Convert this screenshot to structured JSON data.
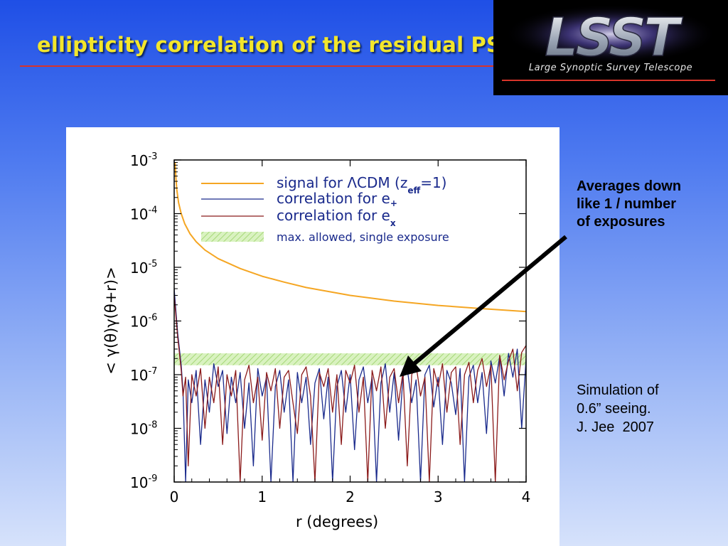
{
  "slide": {
    "title": "ellipticity correlation of the residual PSF: single exposure"
  },
  "logo": {
    "letters": "LSST",
    "subtitle": "Large Synoptic Survey Telescope"
  },
  "notes": {
    "averages": [
      "Averages down",
      "like 1 / number",
      "of exposures"
    ],
    "simulation": [
      "Simulation of",
      "0.6” seeing.",
      "J. Jee  2007"
    ]
  },
  "chart_data": {
    "type": "line",
    "xlabel": "r (degrees)",
    "ylabel": "< γ(θ)γ(θ+r)>",
    "xlim": [
      0,
      4
    ],
    "ylim": [
      1e-09,
      0.001
    ],
    "yscale": "log",
    "xticks": [
      "0",
      "1",
      "2",
      "3",
      "4"
    ],
    "yticks": [
      {
        "base": "10",
        "exp": "-3"
      },
      {
        "base": "10",
        "exp": "-4"
      },
      {
        "base": "10",
        "exp": "-5"
      },
      {
        "base": "10",
        "exp": "-6"
      },
      {
        "base": "10",
        "exp": "-7"
      },
      {
        "base": "10",
        "exp": "-8"
      },
      {
        "base": "10",
        "exp": "-9"
      }
    ],
    "legend_position": "top-right",
    "series": [
      {
        "name": "signal for ΛCDM (zeff=1)",
        "legend_main": "signal for ΛCDM (z",
        "legend_sub": "eff",
        "legend_tail": "=1)",
        "color": "#f5a623",
        "x": [
          0.01,
          0.02,
          0.03,
          0.05,
          0.08,
          0.12,
          0.18,
          0.25,
          0.35,
          0.5,
          0.75,
          1.0,
          1.25,
          1.5,
          2.0,
          2.5,
          3.0,
          3.5,
          4.0
        ],
        "y": [
          0.0009,
          0.00045,
          0.00028,
          0.00016,
          0.0001,
          6.5e-05,
          4.2e-05,
          3e-05,
          2.1e-05,
          1.45e-05,
          9.5e-06,
          6.8e-06,
          5.3e-06,
          4.2e-06,
          3e-06,
          2.35e-06,
          1.95e-06,
          1.7e-06,
          1.5e-06
        ]
      },
      {
        "name": "correlation for e+",
        "legend_main": "correlation for e",
        "legend_sub": "+",
        "color": "#1a2a8c",
        "x": [
          0.0,
          0.02,
          0.04,
          0.06,
          0.08,
          0.1,
          0.13,
          0.16,
          0.2,
          0.25,
          0.3,
          0.35,
          0.4,
          0.45,
          0.5,
          0.55,
          0.6,
          0.65,
          0.7,
          0.75,
          0.8,
          0.85,
          0.9,
          0.95,
          1.0,
          1.05,
          1.1,
          1.15,
          1.2,
          1.25,
          1.3,
          1.35,
          1.4,
          1.45,
          1.5,
          1.55,
          1.6,
          1.65,
          1.7,
          1.75,
          1.8,
          1.85,
          1.9,
          1.95,
          2.0,
          2.05,
          2.1,
          2.15,
          2.2,
          2.25,
          2.3,
          2.35,
          2.4,
          2.45,
          2.5,
          2.55,
          2.6,
          2.65,
          2.7,
          2.75,
          2.8,
          2.85,
          2.9,
          2.95,
          3.0,
          3.05,
          3.1,
          3.15,
          3.2,
          3.25,
          3.3,
          3.35,
          3.4,
          3.45,
          3.5,
          3.55,
          3.6,
          3.65,
          3.7,
          3.75,
          3.8,
          3.85,
          3.9,
          3.95,
          4.0
        ],
        "y": [
          4e-06,
          1.5e-06,
          6e-07,
          3e-07,
          1.5e-07,
          5e-08,
          1e-09,
          8e-08,
          3e-08,
          1.2e-07,
          5e-09,
          8e-08,
          2e-08,
          1.6e-07,
          6e-08,
          1.2e-07,
          8e-09,
          9e-08,
          3e-08,
          1.1e-07,
          1e-08,
          7e-08,
          2e-09,
          1.3e-07,
          4e-08,
          9e-08,
          1e-09,
          6e-08,
          1.2e-07,
          2e-08,
          8e-08,
          1e-09,
          1.1e-07,
          3e-08,
          9e-08,
          5e-09,
          7e-08,
          1.3e-07,
          1.5e-08,
          9e-08,
          1e-09,
          6e-08,
          1.2e-07,
          2e-08,
          1e-07,
          4e-09,
          8e-08,
          1.4e-07,
          3e-08,
          9e-08,
          1e-09,
          7e-08,
          1.6e-07,
          2e-08,
          1.1e-07,
          6e-09,
          9e-08,
          1.3e-07,
          3e-08,
          8e-08,
          1e-09,
          1e-07,
          1.5e-07,
          2.5e-08,
          9e-08,
          5e-09,
          1.2e-07,
          7e-08,
          1.8e-08,
          1.3e-07,
          1e-09,
          9e-08,
          1.5e-07,
          3e-08,
          1.1e-07,
          8e-09,
          1.8e-07,
          7e-08,
          2.2e-07,
          4e-08,
          2.5e-07,
          9e-08,
          3e-07,
          1e-08,
          2e-07
        ]
      },
      {
        "name": "correlation for ex",
        "legend_main": "correlation for e",
        "legend_sub": "x",
        "color": "#8b1a1a",
        "x": [
          0.0,
          0.02,
          0.04,
          0.06,
          0.08,
          0.1,
          0.13,
          0.16,
          0.2,
          0.25,
          0.3,
          0.35,
          0.4,
          0.45,
          0.5,
          0.55,
          0.6,
          0.65,
          0.7,
          0.75,
          0.8,
          0.85,
          0.9,
          0.95,
          1.0,
          1.05,
          1.1,
          1.15,
          1.2,
          1.25,
          1.3,
          1.35,
          1.4,
          1.45,
          1.5,
          1.55,
          1.6,
          1.65,
          1.7,
          1.75,
          1.8,
          1.85,
          1.9,
          1.95,
          2.0,
          2.05,
          2.1,
          2.15,
          2.2,
          2.25,
          2.3,
          2.35,
          2.4,
          2.45,
          2.5,
          2.55,
          2.6,
          2.65,
          2.7,
          2.75,
          2.8,
          2.85,
          2.9,
          2.95,
          3.0,
          3.05,
          3.1,
          3.15,
          3.2,
          3.25,
          3.3,
          3.35,
          3.4,
          3.45,
          3.5,
          3.55,
          3.6,
          3.65,
          3.7,
          3.75,
          3.8,
          3.85,
          3.9,
          3.95,
          4.0
        ],
        "y": [
          3e-06,
          1.2e-06,
          5e-07,
          2.5e-07,
          1.2e-07,
          4e-08,
          9e-08,
          2e-09,
          1e-07,
          4e-08,
          1.3e-07,
          1e-08,
          9e-08,
          3e-08,
          1.4e-07,
          5e-09,
          1e-07,
          4e-08,
          1.2e-07,
          1e-09,
          8e-08,
          1.5e-07,
          3e-08,
          9e-08,
          6e-09,
          1.1e-07,
          5e-08,
          1.3e-07,
          1e-08,
          9e-08,
          1.2e-07,
          3e-08,
          8e-09,
          1e-07,
          1.4e-07,
          4e-08,
          1e-09,
          1.1e-07,
          6e-08,
          1.3e-07,
          2e-08,
          1e-07,
          5e-09,
          1.2e-07,
          7e-08,
          1.5e-07,
          2e-08,
          9e-08,
          1e-09,
          1.2e-07,
          5e-08,
          1.4e-07,
          1e-08,
          9e-08,
          1.3e-07,
          3e-08,
          1.1e-07,
          2e-09,
          1e-07,
          1.5e-07,
          4e-08,
          9e-08,
          1e-09,
          1.3e-07,
          6e-08,
          1.6e-07,
          2e-08,
          1.1e-07,
          1.4e-07,
          5e-09,
          1e-07,
          1.7e-07,
          3e-08,
          1.2e-07,
          2e-07,
          6e-08,
          1.5e-07,
          1e-09,
          2.3e-07,
          8e-08,
          1.8e-07,
          3e-07,
          5e-08,
          2.6e-07,
          3.5e-07
        ]
      }
    ],
    "band": {
      "name": "max. allowed, single exposure",
      "color": "#b6e38c",
      "y_low": 1.5e-07,
      "y_high": 2.5e-07
    }
  }
}
